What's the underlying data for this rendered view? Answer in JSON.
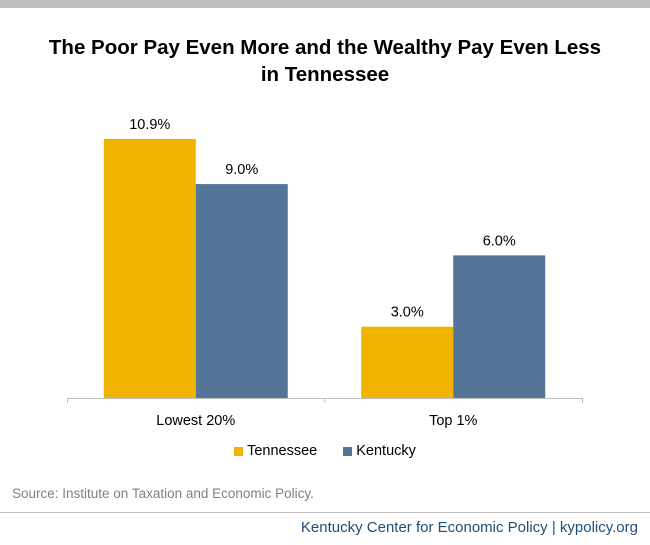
{
  "chart_data": {
    "type": "bar",
    "title_lines": [
      "The Poor Pay Even More and the Wealthy Pay Even Less",
      "in Tennessee"
    ],
    "categories": [
      "Lowest 20%",
      "Top 1%"
    ],
    "series": [
      {
        "name": "Tennessee",
        "values": [
          10.9,
          3.0
        ],
        "labels": [
          "10.9%",
          "3.0%"
        ],
        "color": "#f0b400"
      },
      {
        "name": "Kentucky",
        "values": [
          9.0,
          6.0
        ],
        "labels": [
          "9.0%",
          "6.0%"
        ],
        "color": "#527598"
      }
    ],
    "ylim": [
      0,
      12.2
    ],
    "grid": false,
    "legend_position": "bottom"
  },
  "source": "Source: Institute on Taxation and Economic Policy.",
  "footer": "Kentucky Center for Economic Policy | kypolicy.org"
}
